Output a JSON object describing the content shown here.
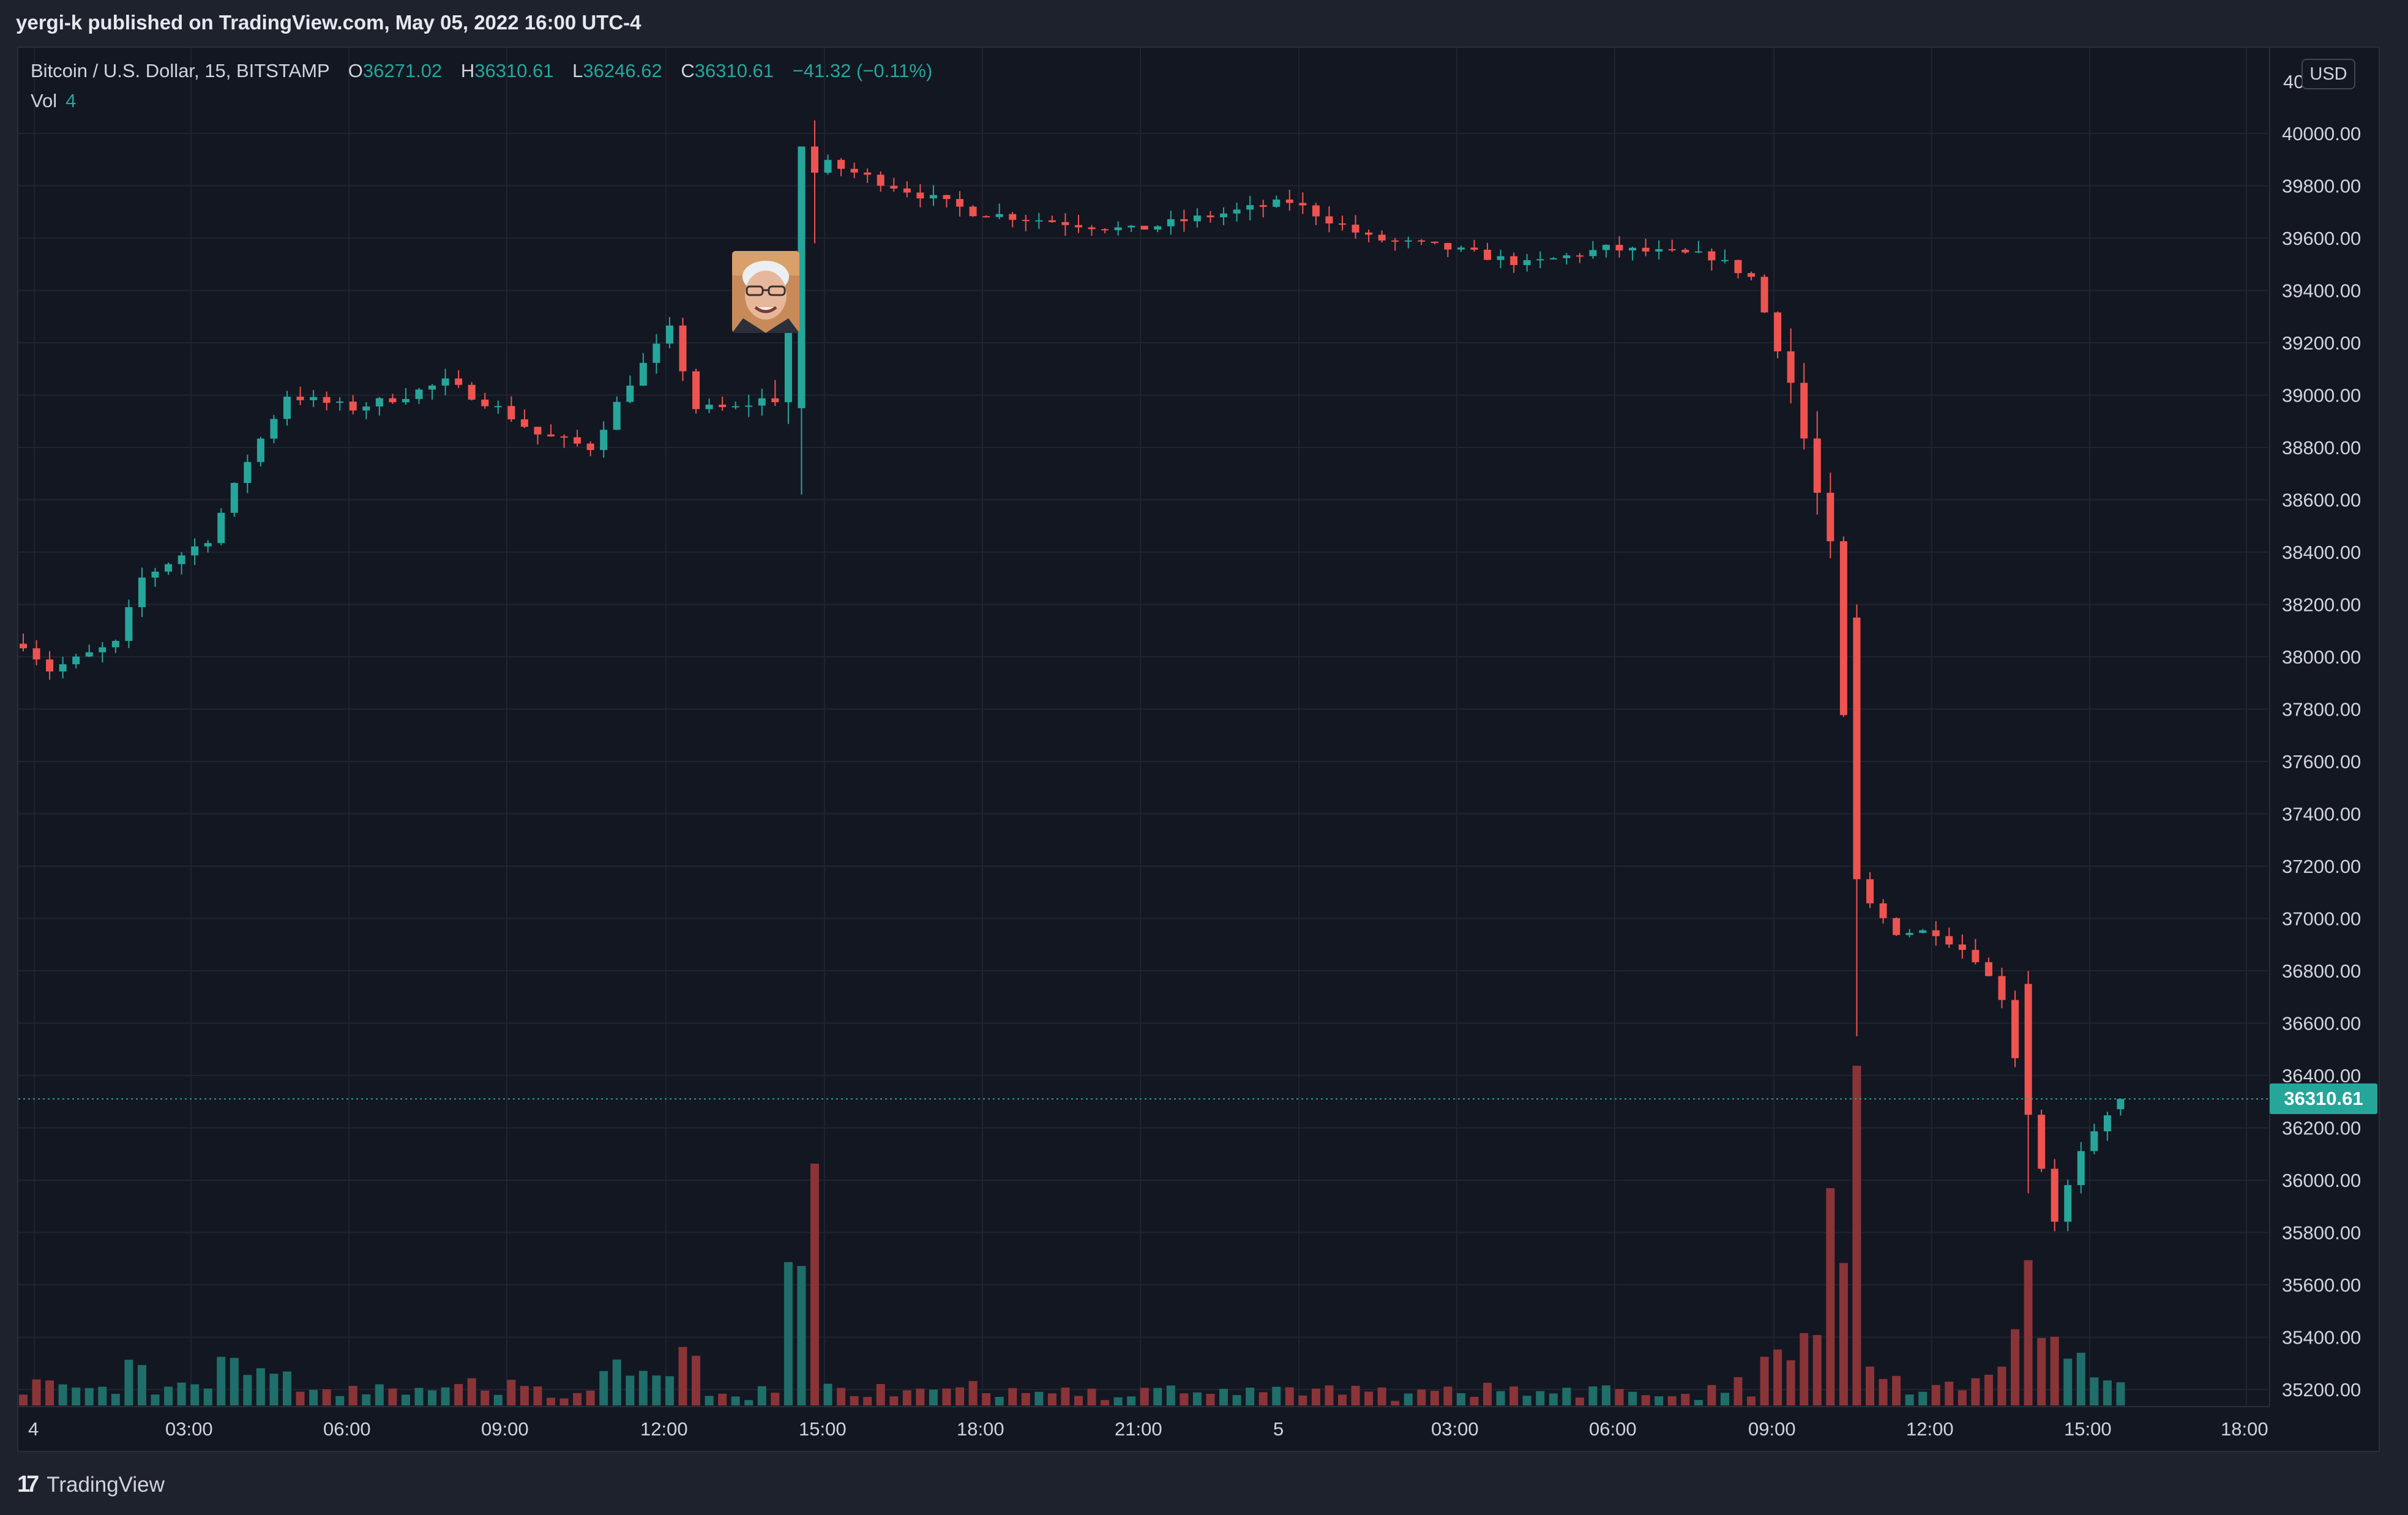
{
  "header": {
    "publish_line": "yergi-k published on TradingView.com, May 05, 2022 16:00 UTC-4"
  },
  "legend": {
    "symbol": "Bitcoin / U.S. Dollar, 15, BITSTAMP",
    "open_key": "O",
    "open": "36271.02",
    "high_key": "H",
    "high": "36310.61",
    "low_key": "L",
    "low": "36246.62",
    "close_key": "C",
    "close": "36310.61",
    "change": "−41.32 (−0.11%)",
    "vol_label": "Vol",
    "vol_value": "4"
  },
  "price_axis": {
    "currency": "USD",
    "top_partial_label": "40",
    "labels": [
      "40000.00",
      "39800.00",
      "39600.00",
      "39400.00",
      "39200.00",
      "39000.00",
      "38800.00",
      "38600.00",
      "38400.00",
      "38200.00",
      "38000.00",
      "37800.00",
      "37600.00",
      "37400.00",
      "37200.00",
      "37000.00",
      "36800.00",
      "36600.00",
      "36400.00",
      "36200.00",
      "36000.00",
      "35800.00",
      "35600.00",
      "35400.00",
      "35200.00"
    ],
    "last_price": "36310.61"
  },
  "time_axis": {
    "labels": [
      "4",
      "03:00",
      "06:00",
      "09:00",
      "12:00",
      "15:00",
      "18:00",
      "21:00",
      "5",
      "03:00",
      "06:00",
      "09:00",
      "12:00",
      "15:00",
      "18:00"
    ]
  },
  "footer": {
    "brand": "TradingView"
  },
  "colors": {
    "up": "#26a69a",
    "down": "#ef5350",
    "up_volume": "#1f6e69",
    "down_volume": "#8a3438",
    "background": "#131722",
    "grid": "#1f2430",
    "text": "#d1d4dc"
  },
  "chart_data": {
    "type": "candlestick",
    "symbol": "Bitcoin / U.S. Dollar",
    "interval_minutes": 15,
    "exchange": "BITSTAMP",
    "y_range": [
      35100,
      40150
    ],
    "x_range_start": "May 04 00:00",
    "waypoints": [
      {
        "t": "00:00",
        "price": 38050
      },
      {
        "t": "00:30",
        "price": 37950
      },
      {
        "t": "01:45",
        "price": 38050
      },
      {
        "t": "02:15",
        "price": 38300
      },
      {
        "t": "03:30",
        "price": 38450
      },
      {
        "t": "04:15",
        "price": 38750
      },
      {
        "t": "05:00",
        "price": 39000
      },
      {
        "t": "06:15",
        "price": 38950
      },
      {
        "t": "07:15",
        "price": 39000
      },
      {
        "t": "08:00",
        "price": 39050
      },
      {
        "t": "09:00",
        "price": 38950
      },
      {
        "t": "09:45",
        "price": 38850
      },
      {
        "t": "10:45",
        "price": 38800
      },
      {
        "t": "11:30",
        "price": 39050
      },
      {
        "t": "12:15",
        "price": 39250
      },
      {
        "t": "12:45",
        "price": 38950
      },
      {
        "t": "13:30",
        "price": 38950
      },
      {
        "t": "14:15",
        "price": 39000
      },
      {
        "t": "14:45",
        "price": 39950
      },
      {
        "t": "15:00",
        "price": 39900
      },
      {
        "t": "16:30",
        "price": 39800
      },
      {
        "t": "18:00",
        "price": 39700
      },
      {
        "t": "21:00",
        "price": 39630
      },
      {
        "t": "May 05 00:00",
        "price": 39740
      },
      {
        "t": "May 05 01:30",
        "price": 39600
      },
      {
        "t": "May 05 03:00",
        "price": 39560
      },
      {
        "t": "May 05 04:30",
        "price": 39500
      },
      {
        "t": "May 05 06:00",
        "price": 39560
      },
      {
        "t": "May 05 08:00",
        "price": 39530
      },
      {
        "t": "May 05 08:45",
        "price": 39450
      },
      {
        "t": "May 05 09:30",
        "price": 39050
      },
      {
        "t": "May 05 10:15",
        "price": 38400
      },
      {
        "t": "May 05 10:45",
        "price": 37100
      },
      {
        "t": "May 05 11:30",
        "price": 36950
      },
      {
        "t": "May 05 12:15",
        "price": 36950
      },
      {
        "t": "May 05 13:00",
        "price": 36850
      },
      {
        "t": "May 05 13:30",
        "price": 36700
      },
      {
        "t": "May 05 14:00",
        "price": 36250
      },
      {
        "t": "May 05 14:30",
        "price": 35850
      },
      {
        "t": "May 05 15:00",
        "price": 36100
      },
      {
        "t": "May 05 15:45",
        "price": 36310.61
      }
    ],
    "notable_candles": [
      {
        "t": "14:45",
        "open": 38950,
        "high": 39950,
        "low": 38620,
        "close": 39950
      },
      {
        "t": "15:00",
        "open": 39950,
        "high": 40050,
        "low": 39580,
        "close": 39850
      },
      {
        "t": "May 05 10:45",
        "open": 38150,
        "high": 38200,
        "low": 36550,
        "close": 37150
      },
      {
        "t": "May 05 14:00",
        "open": 36750,
        "high": 36800,
        "low": 35950,
        "close": 36250
      }
    ],
    "last_candle": {
      "open": 36271.02,
      "high": 36310.61,
      "low": 36246.62,
      "close": 36310.61
    },
    "volume_spikes": [
      {
        "t": "15:00",
        "volume": "large up"
      },
      {
        "t": "May 05 10:45",
        "volume": "largest down"
      },
      {
        "t": "May 05 10:15",
        "volume": "large down"
      }
    ]
  }
}
